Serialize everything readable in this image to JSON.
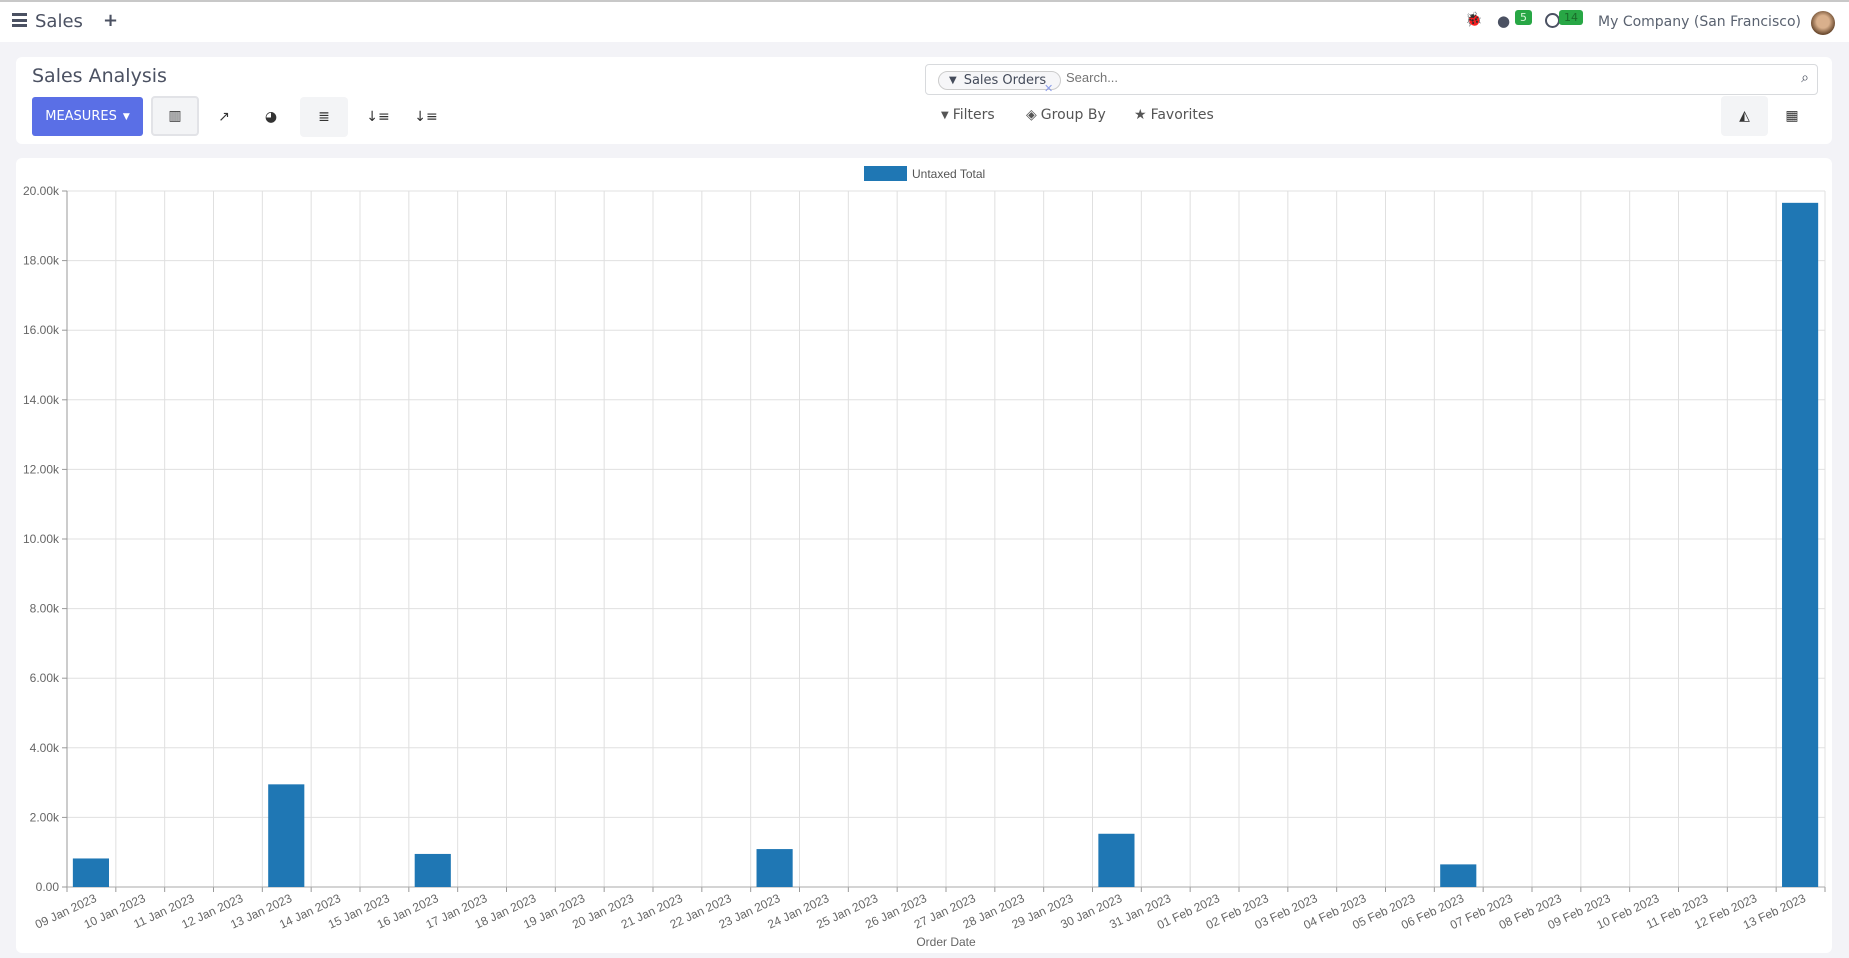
{
  "nav": {
    "app_title": "Sales",
    "company": "My Company (San Francisco)",
    "messages_count": "5",
    "activities_count": "14"
  },
  "control": {
    "title": "Sales Analysis",
    "measures_label": "MEASURES",
    "search_facet": "Sales Orders",
    "search_placeholder": "Search...",
    "filters_label": "Filters",
    "groupby_label": "Group By",
    "favorites_label": "Favorites"
  },
  "colors": {
    "accent": "#5a6fe6",
    "bar": "#1f77b4",
    "badge": "#28a745"
  },
  "chart_data": {
    "type": "bar",
    "xlabel": "Order Date",
    "ylabel": "",
    "ylim": [
      0,
      20000
    ],
    "yticks": [
      "0.00",
      "2.00k",
      "4.00k",
      "6.00k",
      "8.00k",
      "10.00k",
      "12.00k",
      "14.00k",
      "16.00k",
      "18.00k",
      "20.00k"
    ],
    "grid": true,
    "legend": "top-center",
    "categories": [
      "09 Jan 2023",
      "10 Jan 2023",
      "11 Jan 2023",
      "12 Jan 2023",
      "13 Jan 2023",
      "14 Jan 2023",
      "15 Jan 2023",
      "16 Jan 2023",
      "17 Jan 2023",
      "18 Jan 2023",
      "19 Jan 2023",
      "20 Jan 2023",
      "21 Jan 2023",
      "22 Jan 2023",
      "23 Jan 2023",
      "24 Jan 2023",
      "25 Jan 2023",
      "26 Jan 2023",
      "27 Jan 2023",
      "28 Jan 2023",
      "29 Jan 2023",
      "30 Jan 2023",
      "31 Jan 2023",
      "01 Feb 2023",
      "02 Feb 2023",
      "03 Feb 2023",
      "04 Feb 2023",
      "05 Feb 2023",
      "06 Feb 2023",
      "07 Feb 2023",
      "08 Feb 2023",
      "09 Feb 2023",
      "10 Feb 2023",
      "11 Feb 2023",
      "12 Feb 2023",
      "13 Feb 2023"
    ],
    "series": [
      {
        "name": "Untaxed Total",
        "values": [
          820,
          0,
          0,
          0,
          2950,
          0,
          0,
          950,
          0,
          0,
          0,
          0,
          0,
          0,
          1090,
          0,
          0,
          0,
          0,
          0,
          0,
          1530,
          0,
          0,
          0,
          0,
          0,
          0,
          650,
          0,
          0,
          0,
          0,
          0,
          0,
          19660
        ]
      }
    ]
  }
}
